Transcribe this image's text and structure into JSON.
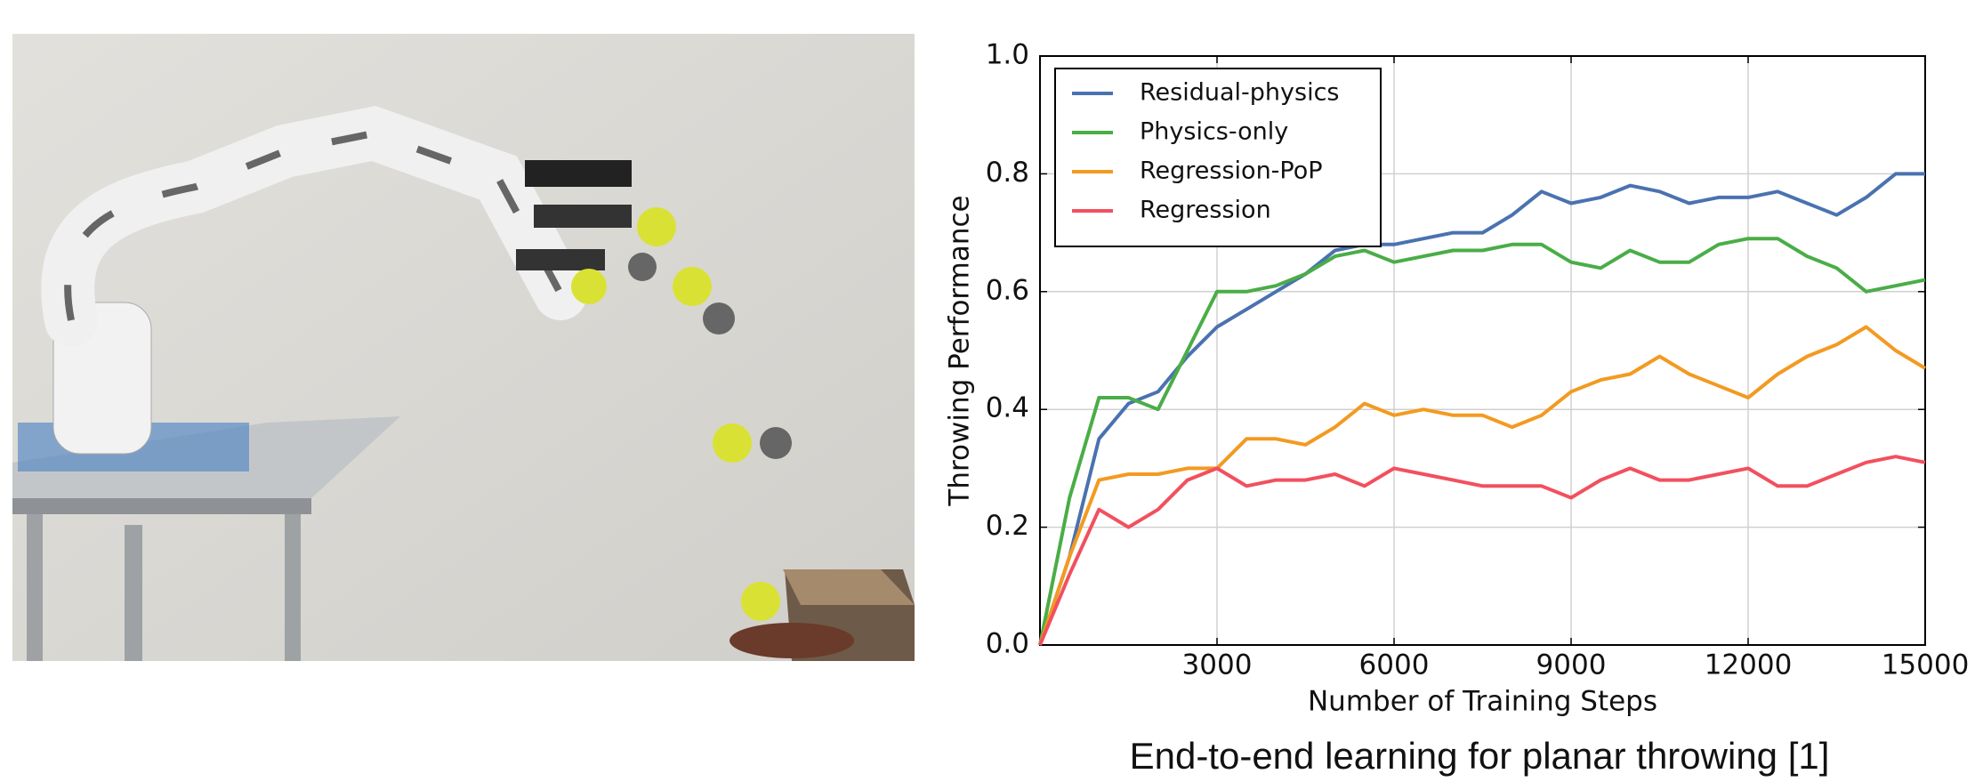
{
  "chart_data": {
    "type": "line",
    "x": [
      0,
      500,
      1000,
      1500,
      2000,
      2500,
      3000,
      3500,
      4000,
      4500,
      5000,
      5500,
      6000,
      6500,
      7000,
      7500,
      8000,
      8500,
      9000,
      9500,
      10000,
      10500,
      11000,
      11500,
      12000,
      12500,
      13000,
      13500,
      14000,
      14500,
      15000
    ],
    "series": [
      {
        "name": "Residual-physics",
        "color": "#4a72b0",
        "values": [
          0,
          0.15,
          0.35,
          0.41,
          0.43,
          0.49,
          0.54,
          0.57,
          0.6,
          0.63,
          0.67,
          0.68,
          0.68,
          0.69,
          0.7,
          0.7,
          0.73,
          0.77,
          0.75,
          0.76,
          0.78,
          0.77,
          0.75,
          0.76,
          0.76,
          0.77,
          0.75,
          0.73,
          0.76,
          0.8,
          0.8
        ]
      },
      {
        "name": "Physics-only",
        "color": "#4aad47",
        "values": [
          0,
          0.25,
          0.42,
          0.42,
          0.4,
          0.5,
          0.6,
          0.6,
          0.61,
          0.63,
          0.66,
          0.67,
          0.65,
          0.66,
          0.67,
          0.67,
          0.68,
          0.68,
          0.65,
          0.64,
          0.67,
          0.65,
          0.65,
          0.68,
          0.69,
          0.69,
          0.66,
          0.64,
          0.6,
          0.61,
          0.62
        ]
      },
      {
        "name": "Regression-PoP",
        "color": "#f39a21",
        "values": [
          0,
          0.15,
          0.28,
          0.29,
          0.29,
          0.3,
          0.3,
          0.35,
          0.35,
          0.34,
          0.37,
          0.41,
          0.39,
          0.4,
          0.39,
          0.39,
          0.37,
          0.39,
          0.43,
          0.45,
          0.46,
          0.49,
          0.46,
          0.44,
          0.42,
          0.46,
          0.49,
          0.51,
          0.54,
          0.5,
          0.47
        ]
      },
      {
        "name": "Regression",
        "color": "#f2505e",
        "values": [
          0,
          0.12,
          0.23,
          0.2,
          0.23,
          0.28,
          0.3,
          0.27,
          0.28,
          0.28,
          0.29,
          0.27,
          0.3,
          0.29,
          0.28,
          0.27,
          0.27,
          0.27,
          0.25,
          0.28,
          0.3,
          0.28,
          0.28,
          0.29,
          0.3,
          0.27,
          0.27,
          0.29,
          0.31,
          0.32,
          0.31
        ]
      }
    ],
    "x_label": "Number of Training Steps",
    "y_label": "Throwing Performance",
    "xlim": [
      0,
      15000
    ],
    "xticks": [
      3000,
      6000,
      9000,
      12000,
      15000
    ],
    "ylim": [
      0,
      1
    ],
    "yticks": [
      {
        "value": 0,
        "label": "0.0"
      },
      0.2,
      0.4,
      0.6,
      0.8,
      {
        "value": 1,
        "label": "1.0"
      }
    ],
    "grid": true,
    "legend": "upper-left"
  },
  "caption": "End-to-end learning for planar throwing [1]"
}
